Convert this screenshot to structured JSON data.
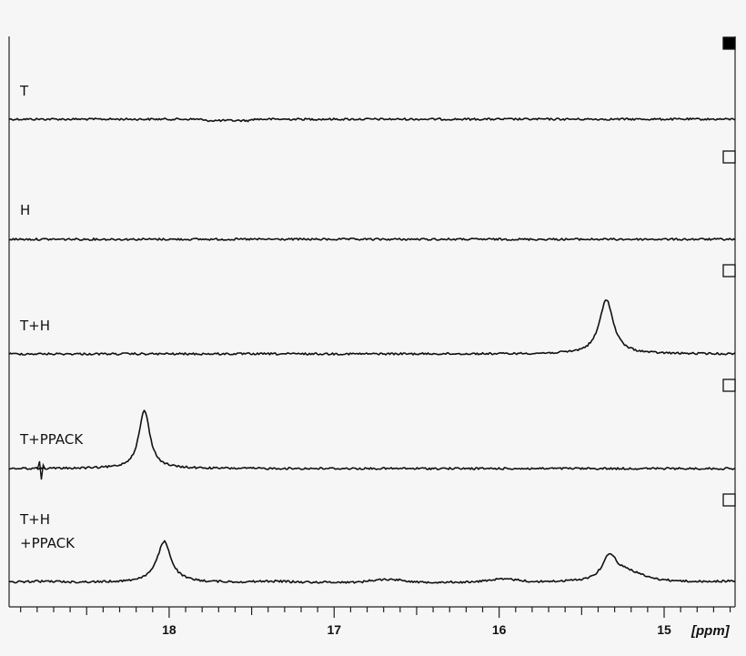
{
  "chart_data": {
    "type": "line",
    "title": "",
    "xlabel": "[ppm]",
    "ylabel": "",
    "x_range": [
      18.97,
      14.57
    ],
    "x_reversed": true,
    "x_major_ticks": [
      18,
      17,
      16,
      15
    ],
    "x_tick_labels": [
      "18",
      "17",
      "16",
      "15"
    ],
    "x_minor_tick_step": 0.1,
    "stacked": true,
    "series": [
      {
        "name": "T",
        "marker": "filled",
        "peaks": []
      },
      {
        "name": "H",
        "marker": "open",
        "peaks": []
      },
      {
        "name": "T+H",
        "marker": "open",
        "peaks": [
          {
            "ppm": 15.35,
            "height": 60,
            "width": 0.05
          }
        ]
      },
      {
        "name": "T+PPACK",
        "marker": "open",
        "peaks": [
          {
            "ppm": 18.15,
            "height": 64,
            "width": 0.04
          }
        ]
      },
      {
        "name": "T+H\n+PPACK",
        "marker": "open",
        "peaks": [
          {
            "ppm": 18.03,
            "height": 44,
            "width": 0.05
          },
          {
            "ppm": 15.33,
            "height": 26,
            "width": 0.05
          },
          {
            "ppm": 15.22,
            "height": 10,
            "width": 0.12
          }
        ]
      }
    ],
    "grid": false,
    "legend": "none"
  }
}
